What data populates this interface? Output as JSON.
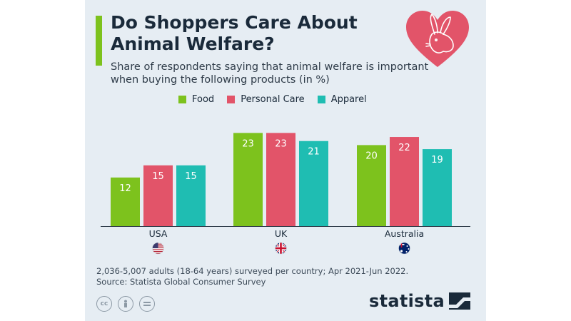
{
  "title": "Do Shoppers Care About Animal Welfare?",
  "subtitle": "Share of respondents saying that animal welfare is important when buying the following products (in %)",
  "legend": [
    {
      "label": "Food",
      "color": "#7dc21d"
    },
    {
      "label": "Personal Care",
      "color": "#e25469"
    },
    {
      "label": "Apparel",
      "color": "#1fbdb2"
    }
  ],
  "footnote": "2,036-5,007 adults (18-64 years) surveyed per country; Apr 2021-Jun 2022.",
  "source": "Source: Statista Global Consumer Survey",
  "brand": "statista",
  "icons": {
    "heart": "heart-rabbit-icon",
    "cc": [
      "cc-icon",
      "person-icon",
      "equals-icon"
    ]
  },
  "chart_data": {
    "type": "bar",
    "categories": [
      "USA",
      "UK",
      "Australia"
    ],
    "series": [
      {
        "name": "Food",
        "values": [
          12,
          23,
          20
        ],
        "color": "#7dc21d"
      },
      {
        "name": "Personal Care",
        "values": [
          15,
          23,
          22
        ],
        "color": "#e25469"
      },
      {
        "name": "Apparel",
        "values": [
          15,
          21,
          19
        ],
        "color": "#1fbdb2"
      }
    ],
    "flags": [
      "us-flag-icon",
      "uk-flag-icon",
      "australia-flag-icon"
    ],
    "ylim": [
      0,
      25
    ],
    "grid": false,
    "legend_position": "top"
  }
}
